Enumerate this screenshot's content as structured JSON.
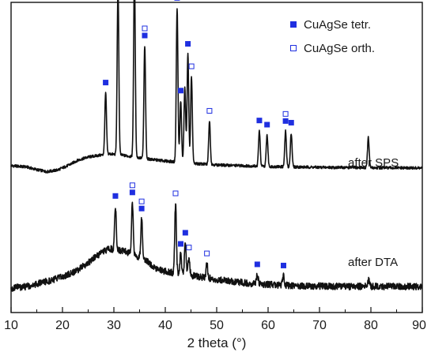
{
  "chart_data": {
    "type": "line",
    "xlabel": "2 theta (°)",
    "ylabel": "",
    "xlim": [
      10,
      90
    ],
    "x_ticks": [
      "10",
      "20",
      "30",
      "40",
      "50",
      "60",
      "70",
      "80",
      "90"
    ],
    "y_ticks_shown": false,
    "grid": false,
    "legend_position": "top-right",
    "legend": [
      {
        "label": "CuAgSe tetr.",
        "marker": "filled-square",
        "color": "#1f2fe0"
      },
      {
        "label": "CuAgSe orth.",
        "marker": "open-square",
        "color": "#1f2fe0"
      }
    ],
    "series": [
      {
        "name": "after SPS",
        "color": "#111111",
        "baseline": [
          [
            10,
            0.3
          ],
          [
            13,
            0.285
          ],
          [
            15,
            0.25
          ],
          [
            17,
            0.225
          ],
          [
            19,
            0.245
          ],
          [
            21,
            0.3
          ],
          [
            23,
            0.37
          ],
          [
            25,
            0.41
          ],
          [
            27,
            0.43
          ],
          [
            29,
            0.45
          ],
          [
            31,
            0.44
          ],
          [
            33,
            0.42
          ],
          [
            36,
            0.39
          ],
          [
            40,
            0.36
          ],
          [
            45,
            0.33
          ],
          [
            50,
            0.31
          ],
          [
            60,
            0.29
          ],
          [
            70,
            0.28
          ],
          [
            80,
            0.275
          ],
          [
            90,
            0.27
          ]
        ],
        "peaks": [
          {
            "x": 28.4,
            "h": 0.78
          },
          {
            "x": 30.8,
            "h": 2.13
          },
          {
            "x": 34.0,
            "h": 2.33
          },
          {
            "x": 36.0,
            "h": 1.43
          },
          {
            "x": 42.3,
            "h": 1.95
          },
          {
            "x": 43.0,
            "h": 0.78
          },
          {
            "x": 43.8,
            "h": 0.95
          },
          {
            "x": 44.4,
            "h": 1.38
          },
          {
            "x": 45.1,
            "h": 1.1
          },
          {
            "x": 48.6,
            "h": 0.55
          },
          {
            "x": 58.3,
            "h": 0.45
          },
          {
            "x": 59.8,
            "h": 0.4
          },
          {
            "x": 63.4,
            "h": 0.45
          },
          {
            "x": 64.5,
            "h": 0.43
          },
          {
            "x": 79.5,
            "h": 0.38
          }
        ],
        "markers_tetr": [
          28.4,
          30.8,
          34.0,
          36.0,
          43.0,
          44.4,
          58.3,
          59.8,
          63.4,
          64.5
        ],
        "markers_orth": [
          34.0,
          36.0,
          42.3,
          45.1,
          48.6,
          63.4
        ],
        "label": "after SPS"
      },
      {
        "name": "after DTA",
        "color": "#111111",
        "baseline": [
          [
            10,
            0.1
          ],
          [
            13,
            0.12
          ],
          [
            16,
            0.17
          ],
          [
            19,
            0.22
          ],
          [
            21,
            0.27
          ],
          [
            23,
            0.33
          ],
          [
            25,
            0.42
          ],
          [
            27,
            0.52
          ],
          [
            29,
            0.6
          ],
          [
            31,
            0.58
          ],
          [
            33,
            0.55
          ],
          [
            36,
            0.46
          ],
          [
            38,
            0.36
          ],
          [
            40,
            0.31
          ],
          [
            44,
            0.27
          ],
          [
            48,
            0.23
          ],
          [
            52,
            0.19
          ],
          [
            58,
            0.15
          ],
          [
            65,
            0.13
          ],
          [
            75,
            0.12
          ],
          [
            90,
            0.12
          ]
        ],
        "peaks": [
          {
            "x": 30.3,
            "h": 0.55
          },
          {
            "x": 33.6,
            "h": 0.65
          },
          {
            "x": 35.4,
            "h": 0.5
          },
          {
            "x": 42.0,
            "h": 0.88
          },
          {
            "x": 43.0,
            "h": 0.25
          },
          {
            "x": 43.9,
            "h": 0.4
          },
          {
            "x": 44.6,
            "h": 0.22
          },
          {
            "x": 48.1,
            "h": 0.18
          },
          {
            "x": 57.9,
            "h": 0.12
          },
          {
            "x": 63.0,
            "h": 0.12
          },
          {
            "x": 79.6,
            "h": 0.08
          }
        ],
        "markers_tetr": [
          30.3,
          33.6,
          35.4,
          43.0,
          43.9,
          57.9,
          63.0
        ],
        "markers_orth": [
          33.6,
          35.4,
          42.0,
          44.6,
          48.1
        ],
        "label": "after DTA"
      }
    ]
  }
}
